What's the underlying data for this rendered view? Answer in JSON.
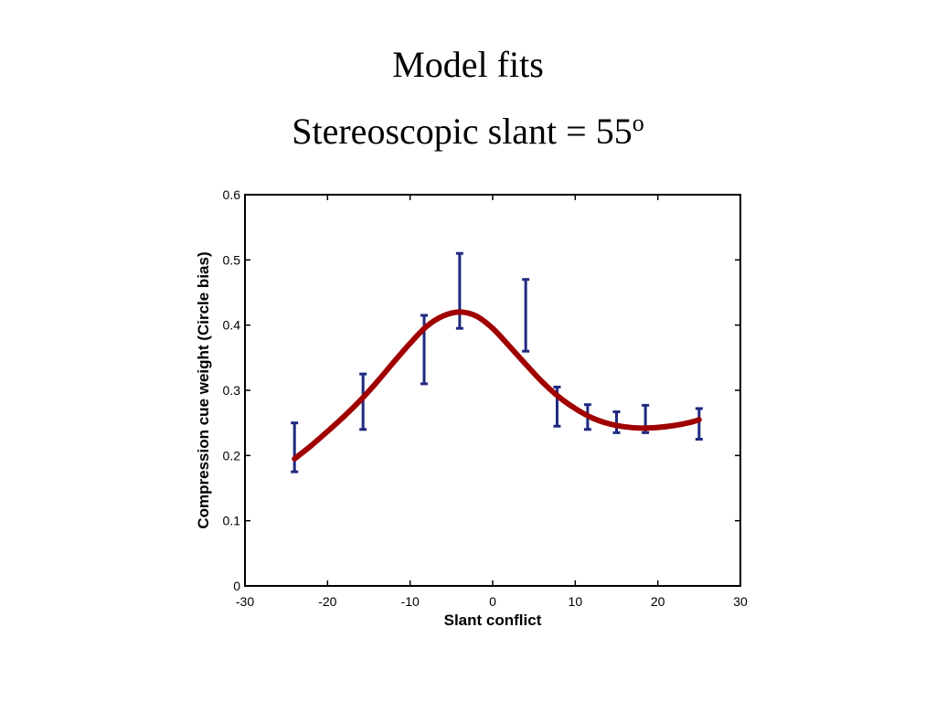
{
  "slide": {
    "title_line1": "Model fits",
    "title_line2": "Stereoscopic slant = 55",
    "title_line2_superscript": "o"
  },
  "chart_data": {
    "type": "line",
    "xlabel": "Slant conflict",
    "ylabel": "Compression cue weight (Circle bias)",
    "xlim": [
      -30,
      30
    ],
    "ylim": [
      0,
      0.6
    ],
    "xticks": [
      -30,
      -20,
      -10,
      0,
      10,
      20,
      30
    ],
    "yticks": [
      0,
      0.1,
      0.2,
      0.3,
      0.4,
      0.5,
      0.6
    ],
    "grid": false,
    "legend": "none",
    "colors": {
      "data": "#1f2a80",
      "fit": "#a00000",
      "axis": "#000000"
    },
    "series": [
      {
        "kind": "errorbar",
        "x": [
          -24.0,
          -15.7,
          -8.3,
          -4.0,
          4.0,
          7.8,
          11.5,
          15.0,
          18.5,
          25.0
        ],
        "y": [
          0.21,
          0.28,
          0.36,
          0.45,
          0.41,
          0.27,
          0.26,
          0.25,
          0.255,
          0.25
        ],
        "yerr_low": [
          0.175,
          0.24,
          0.31,
          0.395,
          0.36,
          0.245,
          0.24,
          0.235,
          0.235,
          0.225
        ],
        "yerr_high": [
          0.25,
          0.325,
          0.415,
          0.51,
          0.47,
          0.305,
          0.278,
          0.267,
          0.277,
          0.272
        ]
      },
      {
        "kind": "line",
        "x": [
          -24,
          -22,
          -20,
          -18,
          -16,
          -14,
          -12,
          -10,
          -8,
          -6,
          -4,
          -2,
          0,
          2,
          4,
          6,
          8,
          10,
          12,
          14,
          16,
          18,
          20,
          22,
          24,
          25
        ],
        "y": [
          0.195,
          0.215,
          0.237,
          0.26,
          0.285,
          0.313,
          0.343,
          0.372,
          0.398,
          0.414,
          0.42,
          0.414,
          0.395,
          0.368,
          0.34,
          0.313,
          0.29,
          0.272,
          0.258,
          0.249,
          0.244,
          0.242,
          0.243,
          0.246,
          0.251,
          0.255
        ]
      }
    ]
  }
}
